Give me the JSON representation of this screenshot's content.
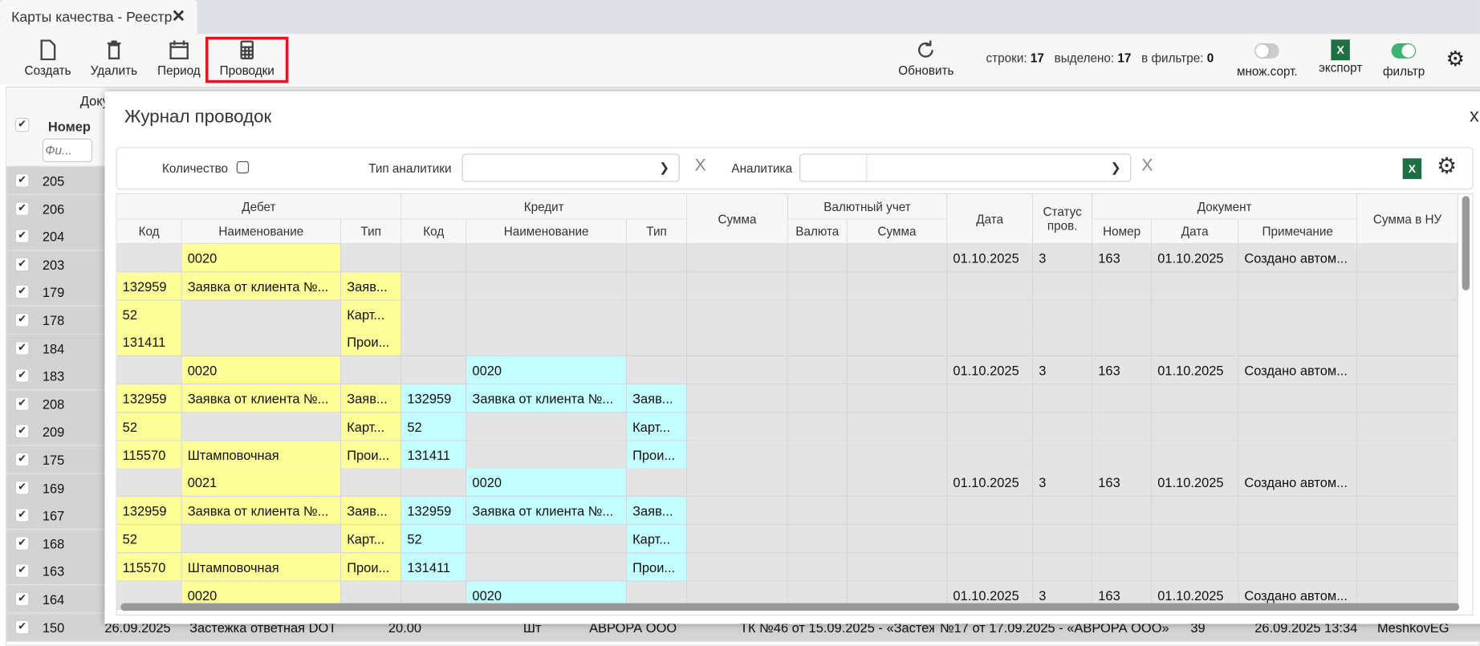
{
  "tab": {
    "title": "Карты качества - Реестр"
  },
  "toolbar": {
    "create": "Создать",
    "delete": "Удалить",
    "period": "Период",
    "postings": "Проводки",
    "refresh": "Обновить",
    "rows_label": "строки:",
    "rows": "17",
    "selected_label": "выделено:",
    "selected": "17",
    "filtered_label": "в фильтре:",
    "filtered": "0",
    "multisort": "множ.сорт.",
    "export": "экспорт",
    "filter": "фильтр",
    "excel_letter": "X",
    "multisort_on": false,
    "filter_on": true
  },
  "colors": {
    "accent_green": "#3cb371",
    "excel": "#1d7044",
    "highlight": "#e8141c",
    "debit": "#ffff99",
    "credit": "#c4ffff"
  },
  "background_grid": {
    "group_header": "Доку",
    "number_header": "Номер",
    "filter_placeholder": "Фи...",
    "numbers": [
      "205",
      "206",
      "204",
      "203",
      "179",
      "178",
      "184",
      "183",
      "208",
      "209",
      "175",
      "169",
      "167",
      "168",
      "163",
      "164",
      "150"
    ],
    "last_row": [
      "150",
      "26.09.2025",
      "Застежка ответная DOT",
      "20.00",
      "Шт",
      "АВРОРА ООО",
      "ТК №46 от 15.09.2025 - «Застеж",
      "№17 от 17.09.2025 - «АВРОРА ООО»",
      "39",
      "26.09.2025 13:34",
      "MeshkovEG"
    ]
  },
  "modal": {
    "title": "Журнал проводок",
    "close": "x",
    "filters": {
      "quantity": "Количество",
      "analytics_type": "Тип аналитики",
      "analytics": "Аналитика",
      "clear": "X"
    },
    "groups": [
      "Дебет",
      "Кредит",
      "Валютный учет",
      "Документ"
    ],
    "columns": [
      "Код",
      "Наименование",
      "Тип",
      "Код",
      "Наименование",
      "Тип",
      "Сумма",
      "Валюта",
      "Сумма",
      "Дата",
      "Статус пров.",
      "Номер",
      "Дата",
      "Примечание",
      "Сумма в НУ"
    ],
    "rows": [
      [
        "",
        "0020",
        "",
        "",
        "",
        "",
        "",
        "",
        "",
        "01.10.2025",
        "3",
        "163",
        "01.10.2025",
        "Создано автом...",
        ""
      ],
      [
        "132959",
        "Заявка от клиента №...",
        "Заяв...",
        "",
        "",
        "",
        "",
        "",
        "",
        "",
        "",
        "",
        "",
        "",
        ""
      ],
      [
        "52",
        "",
        "Карт...",
        "",
        "",
        "",
        "",
        "",
        "",
        "",
        "",
        "",
        "",
        "",
        ""
      ],
      [
        "131411",
        "",
        "Прои...",
        "",
        "",
        "",
        "",
        "",
        "",
        "",
        "",
        "",
        "",
        "",
        ""
      ],
      [
        "",
        "0020",
        "",
        "",
        "0020",
        "",
        "",
        "",
        "",
        "01.10.2025",
        "3",
        "163",
        "01.10.2025",
        "Создано автом...",
        ""
      ],
      [
        "132959",
        "Заявка от клиента №...",
        "Заяв...",
        "132959",
        "Заявка от клиента №...",
        "Заяв...",
        "",
        "",
        "",
        "",
        "",
        "",
        "",
        "",
        ""
      ],
      [
        "52",
        "",
        "Карт...",
        "52",
        "",
        "Карт...",
        "",
        "",
        "",
        "",
        "",
        "",
        "",
        "",
        ""
      ],
      [
        "115570",
        "Штамповочная",
        "Прои...",
        "131411",
        "",
        "Прои...",
        "",
        "",
        "",
        "",
        "",
        "",
        "",
        "",
        ""
      ],
      [
        "",
        "0021",
        "",
        "",
        "0020",
        "",
        "",
        "",
        "",
        "01.10.2025",
        "3",
        "163",
        "01.10.2025",
        "Создано автом...",
        ""
      ],
      [
        "132959",
        "Заявка от клиента №...",
        "Заяв...",
        "132959",
        "Заявка от клиента №...",
        "Заяв...",
        "",
        "",
        "",
        "",
        "",
        "",
        "",
        "",
        ""
      ],
      [
        "52",
        "",
        "Карт...",
        "52",
        "",
        "Карт...",
        "",
        "",
        "",
        "",
        "",
        "",
        "",
        "",
        ""
      ],
      [
        "115570",
        "Штамповочная",
        "Прои...",
        "131411",
        "",
        "Прои...",
        "",
        "",
        "",
        "",
        "",
        "",
        "",
        "",
        ""
      ],
      [
        "",
        "0020",
        "",
        "",
        "0020",
        "",
        "",
        "",
        "",
        "01.10.2025",
        "3",
        "163",
        "01.10.2025",
        "Создано автом...",
        ""
      ]
    ]
  }
}
